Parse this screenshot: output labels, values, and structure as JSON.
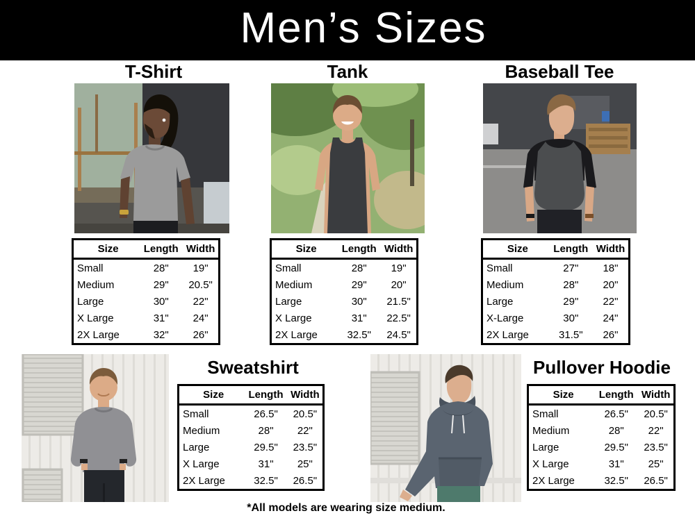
{
  "page": {
    "title": "Men’s Sizes",
    "footnote": "*All models are wearing size medium."
  },
  "table_headers": [
    "Size",
    "Length",
    "Width"
  ],
  "products": [
    {
      "name": "T-Shirt",
      "photo_alt": "man with dreadlocks wearing gray t-shirt outside dark industrial building",
      "rows": [
        [
          "Small",
          "28\"",
          "19\""
        ],
        [
          "Medium",
          "29\"",
          "20.5\""
        ],
        [
          "Large",
          "30\"",
          "22\""
        ],
        [
          "X Large",
          "31\"",
          "24\""
        ],
        [
          "2X Large",
          "32\"",
          "26\""
        ]
      ]
    },
    {
      "name": "Tank",
      "photo_alt": "smiling man wearing charcoal tank top on a sunlit wooded path",
      "rows": [
        [
          "Small",
          "28\"",
          "19\""
        ],
        [
          "Medium",
          "29\"",
          "20\""
        ],
        [
          "Large",
          "30\"",
          "21.5\""
        ],
        [
          "X Large",
          "31\"",
          "22.5\""
        ],
        [
          "2X Large",
          "32.5\"",
          "24.5\""
        ]
      ]
    },
    {
      "name": "Baseball Tee",
      "photo_alt": "man wearing charcoal and black raglan baseball tee in a parking lot",
      "rows": [
        [
          "Small",
          "27\"",
          "18\""
        ],
        [
          "Medium",
          "28\"",
          "20\""
        ],
        [
          "Large",
          "29\"",
          "22\""
        ],
        [
          "X-Large",
          "30\"",
          "24\""
        ],
        [
          "2X Large",
          "31.5\"",
          "26\""
        ]
      ]
    },
    {
      "name": "Sweatshirt",
      "photo_alt": "man wearing gray crewneck sweatshirt with thumbs in pockets by white corrugated wall",
      "rows": [
        [
          "Small",
          "26.5\"",
          "20.5\""
        ],
        [
          "Medium",
          "28\"",
          "22\""
        ],
        [
          "Large",
          "29.5\"",
          "23.5\""
        ],
        [
          "X Large",
          "31\"",
          "25\""
        ],
        [
          "2X Large",
          "32.5\"",
          "26.5\""
        ]
      ]
    },
    {
      "name": "Pullover Hoodie",
      "photo_alt": "man wearing slate pullover hoodie leaning against white corrugated wall",
      "rows": [
        [
          "Small",
          "26.5\"",
          "20.5\""
        ],
        [
          "Medium",
          "28\"",
          "22\""
        ],
        [
          "Large",
          "29.5\"",
          "23.5\""
        ],
        [
          "X Large",
          "31\"",
          "25\""
        ],
        [
          "2X Large",
          "32.5\"",
          "26.5\""
        ]
      ]
    }
  ],
  "colors": {
    "header_bg": "#000000",
    "header_text": "#ffffff",
    "body_bg": "#ffffff",
    "table_border": "#000000",
    "text": "#000000"
  }
}
